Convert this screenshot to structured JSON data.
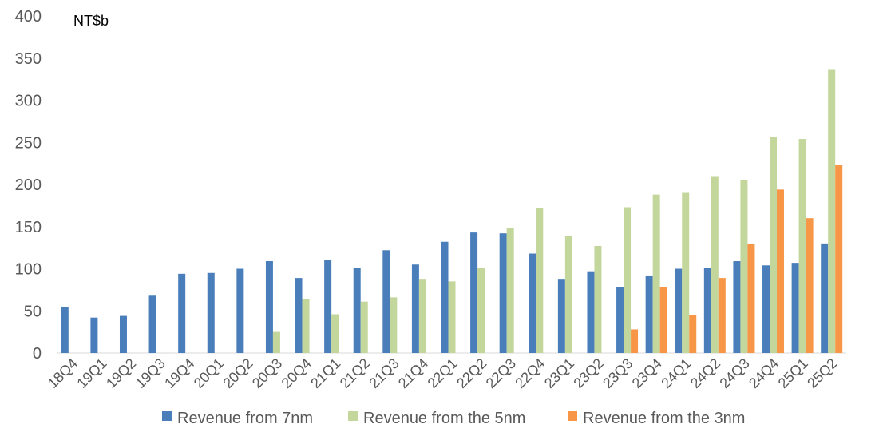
{
  "chart_data": {
    "type": "bar",
    "unit_label": "NT$b",
    "categories": [
      "18Q4",
      "19Q1",
      "19Q2",
      "19Q3",
      "19Q4",
      "20Q1",
      "20Q2",
      "20Q3",
      "20Q4",
      "21Q1",
      "21Q2",
      "21Q3",
      "21Q4",
      "22Q1",
      "22Q2",
      "22Q3",
      "22Q4",
      "23Q1",
      "23Q2",
      "23Q3",
      "23Q4",
      "24Q1",
      "24Q2",
      "24Q3",
      "24Q4",
      "25Q1",
      "25Q2"
    ],
    "ylim": [
      0,
      400
    ],
    "yticks": [
      0,
      50,
      100,
      150,
      200,
      250,
      300,
      350,
      400
    ],
    "grid": false,
    "legend_position": "bottom",
    "series": [
      {
        "name": "Revenue from 7nm",
        "color": "#4a7ebb",
        "values": [
          55,
          42,
          44,
          68,
          94,
          95,
          100,
          109,
          89,
          110,
          101,
          122,
          105,
          132,
          143,
          142,
          118,
          88,
          97,
          78,
          92,
          100,
          101,
          109,
          104,
          107,
          130
        ]
      },
      {
        "name": "Revenue from the 5nm",
        "color": "#c3d69b",
        "values": [
          0,
          0,
          0,
          0,
          0,
          0,
          0,
          25,
          64,
          46,
          61,
          66,
          88,
          85,
          101,
          148,
          172,
          139,
          127,
          173,
          188,
          190,
          209,
          205,
          256,
          254,
          336
        ]
      },
      {
        "name": "Revenue from the 3nm",
        "color": "#f79646",
        "values": [
          0,
          0,
          0,
          0,
          0,
          0,
          0,
          0,
          0,
          0,
          0,
          0,
          0,
          0,
          0,
          0,
          0,
          0,
          0,
          28,
          78,
          45,
          89,
          129,
          194,
          160,
          223
        ]
      }
    ]
  }
}
